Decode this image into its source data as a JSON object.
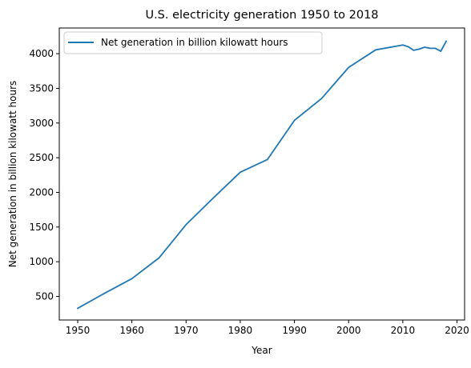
{
  "chart_data": {
    "type": "line",
    "title": "U.S. electricity generation 1950 to 2018",
    "xlabel": "Year",
    "ylabel": "Net generation in billion kilowatt hours",
    "xlim": [
      1946.6,
      2021.4
    ],
    "ylim": [
      160,
      4370
    ],
    "x_ticks": [
      1950,
      1960,
      1970,
      1980,
      1990,
      2000,
      2010,
      2020
    ],
    "y_ticks": [
      500,
      1000,
      1500,
      2000,
      2500,
      3000,
      3500,
      4000
    ],
    "grid": false,
    "legend_position": "upper-left",
    "series": [
      {
        "name": "Net generation in billion kilowatt hours",
        "color": "#1f77b4",
        "x": [
          1950,
          1955,
          1960,
          1965,
          1970,
          1975,
          1980,
          1985,
          1990,
          1995,
          2000,
          2005,
          2010,
          2011,
          2012,
          2013,
          2014,
          2015,
          2016,
          2017,
          2018
        ],
        "y": [
          329,
          547,
          756,
          1055,
          1535,
          1918,
          2290,
          2473,
          3038,
          3353,
          3802,
          4055,
          4125,
          4100,
          4048,
          4066,
          4093,
          4078,
          4077,
          4035,
          4178
        ]
      }
    ]
  }
}
